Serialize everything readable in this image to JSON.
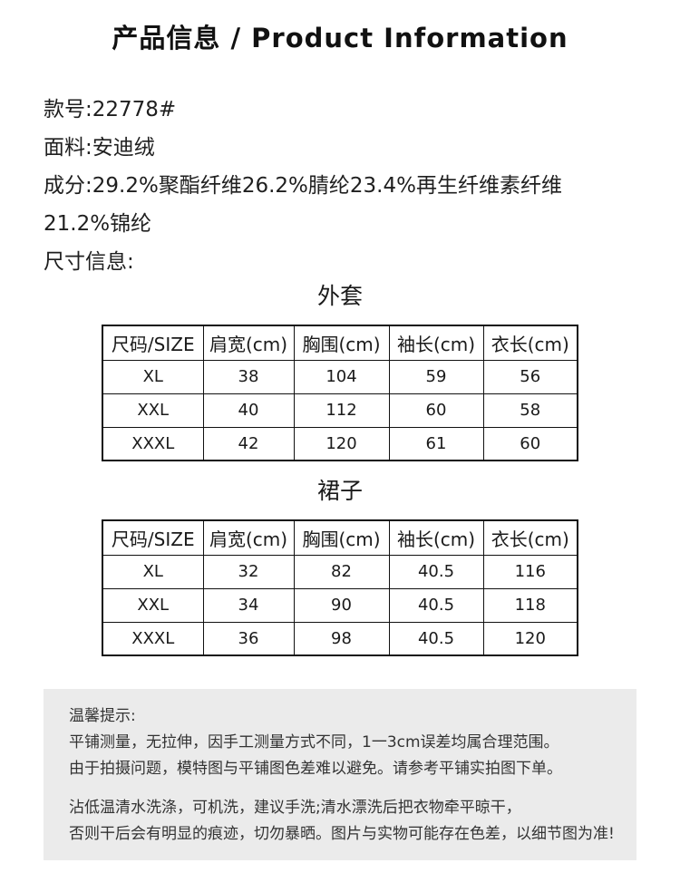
{
  "header": {
    "title": "产品信息 / Product Information"
  },
  "product_info": {
    "style_number": "款号:22778#",
    "fabric": "面料:安迪绒",
    "composition_line1": "成分:29.2%聚酯纤维26.2%腈纶23.4%再生纤维素纤维",
    "composition_line2": "21.2%锦纶",
    "size_info_label": "尺寸信息:"
  },
  "size_tables": [
    {
      "title": "外套",
      "headers": [
        "尺码/SIZE",
        "肩宽(cm)",
        "胸围(cm)",
        "袖长(cm)",
        "衣长(cm)"
      ],
      "rows": [
        [
          "XL",
          "38",
          "104",
          "59",
          "56"
        ],
        [
          "XXL",
          "40",
          "112",
          "60",
          "58"
        ],
        [
          "XXXL",
          "42",
          "120",
          "61",
          "60"
        ]
      ]
    },
    {
      "title": "裙子",
      "headers": [
        "尺码/SIZE",
        "肩宽(cm)",
        "胸围(cm)",
        "袖长(cm)",
        "衣长(cm)"
      ],
      "rows": [
        [
          "XL",
          "32",
          "82",
          "40.5",
          "116"
        ],
        [
          "XXL",
          "34",
          "90",
          "40.5",
          "118"
        ],
        [
          "XXXL",
          "36",
          "98",
          "40.5",
          "120"
        ]
      ]
    }
  ],
  "notes": {
    "title": "温馨提示:",
    "para1": [
      "平铺测量，无拉伸，因手工测量方式不同，1一3cm误差均属合理范围。",
      "由于拍摄问题，模特图与平铺图色差难以避免。请参考平铺实拍图下单。"
    ],
    "para2": [
      "沾低温清水洗涤，可机洗，建议手洗;清水漂洗后把衣物牵平晾干，",
      "否则干后会有明显的痕迹，切勿暴晒。图片与实物可能存在色差，以细节图为准!"
    ]
  },
  "colors": {
    "page_bg": "#ffffff",
    "text": "#1f1f1f",
    "table_border": "#111111",
    "notes_bg": "#ebebeb",
    "notes_text": "#333333"
  }
}
